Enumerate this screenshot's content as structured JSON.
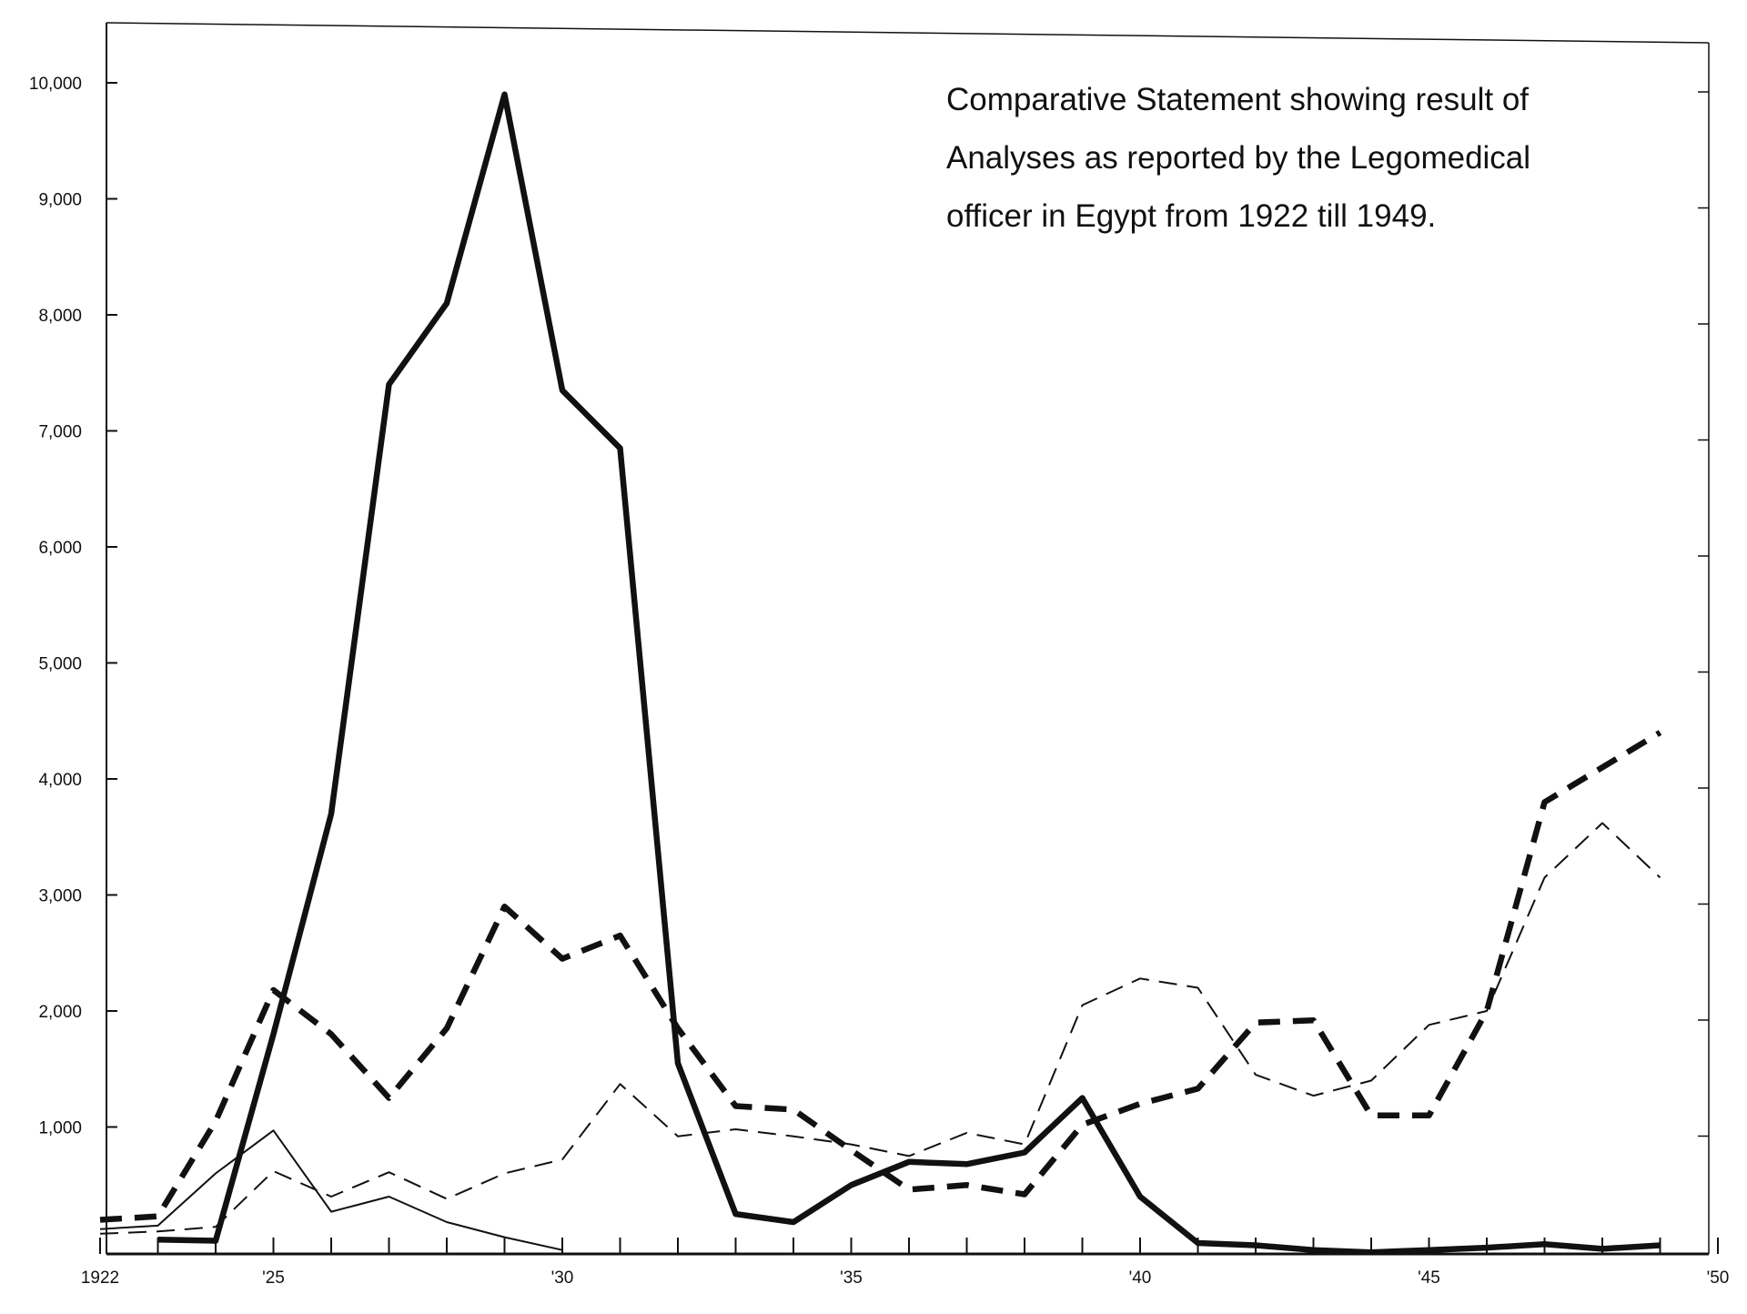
{
  "chart_data": {
    "type": "line",
    "title_lines": [
      "Comparative Statement showing result of",
      "Analyses as reported by the Legomedical",
      "officer in Egypt from 1922 till 1949."
    ],
    "xlabel": "",
    "ylabel": "",
    "xlim": [
      1922,
      1950
    ],
    "ylim": [
      0,
      10500
    ],
    "x_ticks": [
      1922,
      1925,
      1930,
      1935,
      1940,
      1945,
      1950
    ],
    "x_tick_labels": [
      "1922",
      "'25",
      "'30",
      "'35",
      "'40",
      "'45",
      "'50"
    ],
    "y_ticks": [
      1000,
      2000,
      3000,
      4000,
      5000,
      6000,
      7000,
      8000,
      9000,
      10000
    ],
    "y_tick_labels": [
      "1,000",
      "2,000",
      "3,000",
      "4,000",
      "5,000",
      "6,000",
      "7,000",
      "8,000",
      "9,000",
      "10,000"
    ],
    "grid": false,
    "legend": "none",
    "series": [
      {
        "style": "thick-solid",
        "color": "#111111",
        "x": [
          1923,
          1924,
          1925,
          1926,
          1927,
          1928,
          1929,
          1930,
          1931,
          1932,
          1933,
          1934,
          1935,
          1936,
          1937,
          1938,
          1939,
          1940,
          1941,
          1942,
          1943,
          1944,
          1945,
          1946,
          1947,
          1948,
          1949
        ],
        "y": [
          30,
          20,
          1800,
          3700,
          7400,
          8100,
          9900,
          7350,
          6850,
          1550,
          250,
          180,
          500,
          700,
          680,
          780,
          1250,
          400,
          0,
          -20,
          -60,
          -80,
          -60,
          -40,
          -10,
          -50,
          -20
        ]
      },
      {
        "style": "thick-dashed",
        "color": "#111111",
        "x": [
          1922,
          1923,
          1924,
          1925,
          1926,
          1927,
          1928,
          1929,
          1930,
          1931,
          1932,
          1933,
          1934,
          1935,
          1936,
          1937,
          1938,
          1939,
          1940,
          1941,
          1942,
          1943,
          1944,
          1945,
          1946,
          1947,
          1948,
          1949
        ],
        "y": [
          200,
          230,
          1050,
          2180,
          1800,
          1250,
          1850,
          2900,
          2450,
          2650,
          1850,
          1180,
          1150,
          800,
          460,
          500,
          420,
          1020,
          1200,
          1330,
          1900,
          1920,
          1100,
          1100,
          2000,
          3800,
          4100,
          4400
        ]
      },
      {
        "style": "thin-dashed",
        "color": "#111111",
        "x": [
          1922,
          1923,
          1924,
          1925,
          1926,
          1927,
          1928,
          1929,
          1930,
          1931,
          1932,
          1933,
          1934,
          1935,
          1936,
          1937,
          1938,
          1939,
          1940,
          1941,
          1942,
          1943,
          1944,
          1945,
          1946,
          1947,
          1948,
          1949
        ],
        "y": [
          80,
          100,
          140,
          620,
          400,
          610,
          380,
          600,
          720,
          1370,
          920,
          980,
          920,
          850,
          750,
          950,
          850,
          2050,
          2280,
          2200,
          1450,
          1270,
          1400,
          1880,
          2000,
          3150,
          3620,
          3150
        ]
      },
      {
        "style": "thin-solid",
        "color": "#111111",
        "x": [
          1922,
          1923,
          1924,
          1925,
          1926,
          1927,
          1928,
          1929,
          1930
        ],
        "y": [
          120,
          150,
          600,
          970,
          270,
          400,
          180,
          50,
          -60
        ]
      }
    ]
  }
}
